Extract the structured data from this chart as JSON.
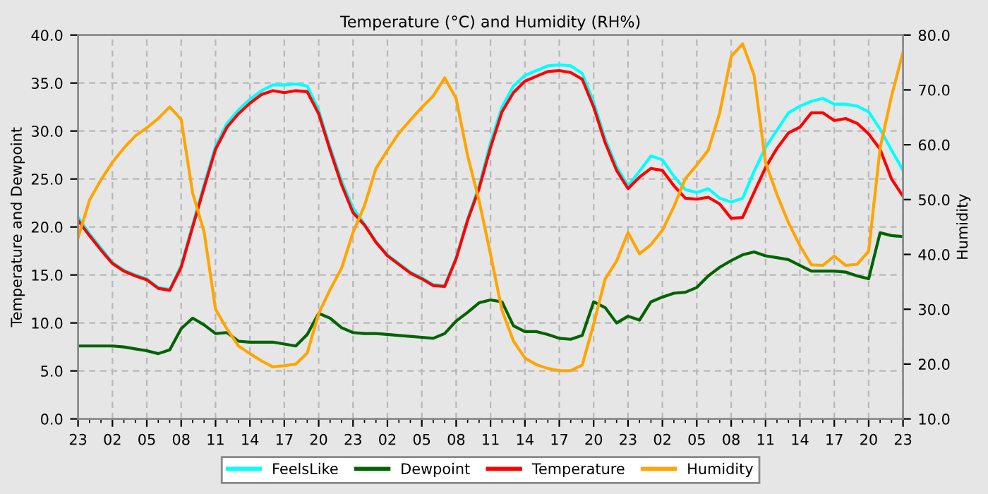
{
  "chart_data": {
    "type": "line",
    "title": "Temperature (°C) and Humidity (RH%)",
    "ylabel": "Temperature and Dewpoint",
    "y2label": "Humidity",
    "categories": [
      "23",
      null,
      null,
      "02",
      null,
      null,
      "05",
      null,
      null,
      "08",
      null,
      null,
      "11",
      null,
      null,
      "14",
      null,
      null,
      "17",
      null,
      null,
      "20",
      null,
      null,
      "23",
      null,
      null,
      "02",
      null,
      null,
      "05",
      null,
      null,
      "08",
      null,
      null,
      "11",
      null,
      null,
      "14",
      null,
      null,
      "17",
      null,
      null,
      "20",
      null,
      null,
      "23",
      null,
      null,
      "02",
      null,
      null,
      "05",
      null,
      null,
      "08",
      null,
      null,
      "11",
      null,
      null,
      "14",
      null,
      null,
      "17",
      null,
      null,
      "20",
      null,
      null,
      "23"
    ],
    "ylim": [
      0,
      40
    ],
    "yticks": [
      {
        "value": 0,
        "label": "0.0"
      },
      {
        "value": 5,
        "label": "5.0"
      },
      {
        "value": 10,
        "label": "10.0"
      },
      {
        "value": 15,
        "label": "15.0"
      },
      {
        "value": 20,
        "label": "20.0"
      },
      {
        "value": 25,
        "label": "25.0"
      },
      {
        "value": 30,
        "label": "30.0"
      },
      {
        "value": 35,
        "label": "35.0"
      },
      {
        "value": 40,
        "label": "40.0"
      }
    ],
    "y2lim": [
      10,
      80
    ],
    "y2ticks": [
      {
        "value": 10,
        "label": "10.0"
      },
      {
        "value": 20,
        "label": "20.0"
      },
      {
        "value": 30,
        "label": "30.0"
      },
      {
        "value": 40,
        "label": "40.0"
      },
      {
        "value": 50,
        "label": "50.0"
      },
      {
        "value": 60,
        "label": "60.0"
      },
      {
        "value": 70,
        "label": "70.0"
      },
      {
        "value": 80,
        "label": "80.0"
      }
    ],
    "grid": true,
    "legend": "bottom",
    "line_style": "solid",
    "marker": "none",
    "series": [
      {
        "name": "FeelsLike",
        "color": "#00ffff",
        "values": [
          21.0,
          19.3,
          17.8,
          16.3,
          15.5,
          15.0,
          14.6,
          13.7,
          13.5,
          16.0,
          20.2,
          24.4,
          28.4,
          30.8,
          32.2,
          33.3,
          34.2,
          34.8,
          34.8,
          34.9,
          34.7,
          32.2,
          28.3,
          24.8,
          22.0,
          20.3,
          18.5,
          17.1,
          16.2,
          15.3,
          14.7,
          14.0,
          13.9,
          16.8,
          20.8,
          24.3,
          28.8,
          32.5,
          34.7,
          35.8,
          36.3,
          36.8,
          36.9,
          36.8,
          36.0,
          33.0,
          29.2,
          26.3,
          24.3,
          25.8,
          27.4,
          27.0,
          25.3,
          23.9,
          23.6,
          24.0,
          23.0,
          22.6,
          23.0,
          25.8,
          28.3,
          30.1,
          31.9,
          32.6,
          33.1,
          33.4,
          32.8,
          32.8,
          32.6,
          32.0,
          30.2,
          28.0,
          25.9
        ]
      },
      {
        "name": "Dewpoint",
        "color": "#006400",
        "values": [
          7.6,
          7.6,
          7.6,
          7.6,
          7.5,
          7.3,
          7.1,
          6.8,
          7.2,
          9.4,
          10.5,
          9.8,
          8.9,
          9.0,
          8.1,
          8.0,
          8.0,
          8.0,
          7.8,
          7.6,
          8.8,
          11.0,
          10.5,
          9.5,
          9.0,
          8.9,
          8.9,
          8.8,
          8.7,
          8.6,
          8.5,
          8.4,
          8.9,
          10.2,
          11.1,
          12.1,
          12.4,
          12.2,
          9.7,
          9.1,
          9.1,
          8.8,
          8.4,
          8.3,
          8.7,
          12.2,
          11.6,
          10.0,
          10.7,
          10.3,
          12.2,
          12.7,
          13.1,
          13.2,
          13.7,
          14.9,
          15.8,
          16.5,
          17.1,
          17.4,
          17.0,
          16.8,
          16.6,
          16.0,
          15.4,
          15.4,
          15.4,
          15.3,
          14.9,
          14.6,
          19.4,
          19.1,
          19.0
        ]
      },
      {
        "name": "Temperature",
        "color": "#ff0000",
        "values": [
          20.7,
          19.1,
          17.6,
          16.2,
          15.4,
          14.9,
          14.5,
          13.6,
          13.4,
          15.8,
          20.0,
          24.1,
          28.1,
          30.4,
          31.8,
          32.9,
          33.8,
          34.2,
          34.0,
          34.2,
          34.1,
          31.8,
          28.0,
          24.4,
          21.5,
          20.2,
          18.4,
          17.0,
          16.1,
          15.2,
          14.6,
          13.9,
          13.8,
          16.7,
          20.7,
          24.0,
          28.3,
          32.0,
          34.0,
          35.2,
          35.7,
          36.2,
          36.3,
          36.1,
          35.4,
          32.5,
          28.8,
          25.9,
          24.0,
          25.2,
          26.1,
          25.9,
          24.3,
          23.0,
          22.9,
          23.1,
          22.4,
          20.9,
          21.0,
          23.6,
          26.2,
          28.2,
          29.8,
          30.4,
          31.9,
          31.9,
          31.1,
          31.3,
          30.8,
          29.7,
          28.1,
          25.0,
          23.2
        ]
      },
      {
        "name": "Humidity",
        "color": "#ffa500",
        "axis": "y2",
        "values": [
          43.0,
          49.9,
          53.6,
          56.8,
          59.4,
          61.6,
          63.1,
          64.8,
          66.9,
          64.6,
          51.2,
          44.1,
          30.0,
          26.4,
          23.3,
          21.9,
          20.6,
          19.5,
          19.7,
          20.0,
          22.0,
          29.2,
          33.6,
          37.5,
          44.0,
          48.9,
          55.7,
          59.0,
          62.1,
          64.5,
          66.8,
          68.9,
          72.2,
          68.4,
          58.0,
          49.8,
          40.0,
          29.8,
          24.2,
          21.1,
          19.9,
          19.2,
          18.8,
          18.8,
          19.8,
          27.3,
          35.5,
          38.8,
          44.0,
          40.1,
          41.8,
          44.4,
          48.7,
          53.8,
          56.3,
          59.0,
          65.8,
          76.1,
          78.4,
          72.7,
          56.8,
          50.9,
          45.8,
          41.6,
          38.1,
          38.0,
          39.7,
          38.0,
          38.2,
          40.6,
          59.4,
          68.9,
          76.9
        ]
      }
    ]
  }
}
